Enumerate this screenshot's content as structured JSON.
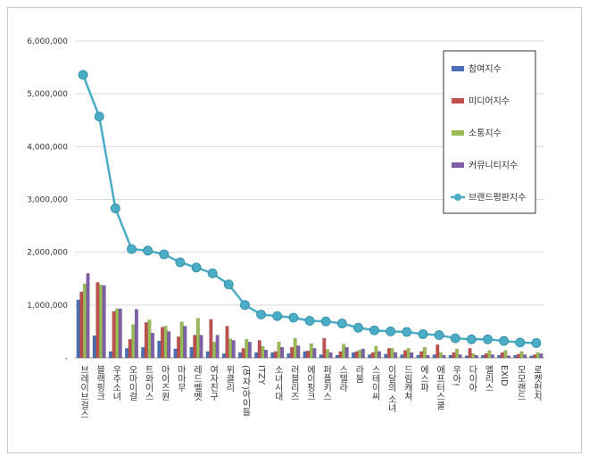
{
  "chart_data": {
    "type": "bar-line",
    "categories": [
      "브레이브걸스",
      "블랙핑크",
      "우주소녀",
      "오마이걸",
      "트와이스",
      "아이즈원",
      "마마무",
      "레드벨벳",
      "여자친구",
      "위클리",
      "(여자)아이들",
      "ITZY",
      "소녀시대",
      "러블리즈",
      "에이핑크",
      "퍼플키스",
      "스텔라",
      "라붐",
      "스테이씨",
      "이달의 소녀",
      "드림캐쳐",
      "에스파",
      "애프터스쿨",
      "우아!",
      "다이아",
      "엘리스",
      "EXID",
      "모모랜드",
      "로켓펀치"
    ],
    "series": [
      {
        "name": "참여지수",
        "type": "bar",
        "color": "#4a6fb5",
        "values": [
          1100000,
          420000,
          120000,
          180000,
          200000,
          320000,
          170000,
          200000,
          120000,
          80000,
          100000,
          100000,
          100000,
          80000,
          120000,
          60000,
          50000,
          100000,
          60000,
          70000,
          60000,
          50000,
          60000,
          50000,
          40000,
          50000,
          50000,
          50000,
          40000
        ]
      },
      {
        "name": "미디어지수",
        "type": "bar",
        "color": "#c0504d",
        "values": [
          1250000,
          1430000,
          880000,
          350000,
          670000,
          580000,
          400000,
          430000,
          730000,
          600000,
          180000,
          330000,
          120000,
          200000,
          130000,
          370000,
          120000,
          120000,
          100000,
          180000,
          140000,
          120000,
          250000,
          100000,
          180000,
          80000,
          100000,
          70000,
          60000
        ]
      },
      {
        "name": "소통지수",
        "type": "bar",
        "color": "#9bbb59",
        "values": [
          1400000,
          1380000,
          930000,
          630000,
          720000,
          600000,
          680000,
          750000,
          300000,
          360000,
          350000,
          220000,
          300000,
          370000,
          270000,
          160000,
          260000,
          150000,
          220000,
          180000,
          180000,
          200000,
          100000,
          170000,
          80000,
          140000,
          140000,
          120000,
          100000
        ]
      },
      {
        "name": "커뮤니티지수",
        "type": "bar",
        "color": "#7e5fa8",
        "values": [
          1600000,
          1370000,
          930000,
          920000,
          470000,
          500000,
          600000,
          430000,
          430000,
          330000,
          300000,
          150000,
          200000,
          230000,
          180000,
          100000,
          200000,
          170000,
          120000,
          100000,
          100000,
          50000,
          50000,
          60000,
          50000,
          60000,
          40000,
          60000,
          80000
        ]
      },
      {
        "name": "브랜드평판지수",
        "type": "line",
        "color": "#4bacc6",
        "values": [
          5360000,
          4570000,
          2830000,
          2060000,
          2030000,
          1960000,
          1810000,
          1710000,
          1600000,
          1390000,
          1000000,
          820000,
          790000,
          760000,
          700000,
          690000,
          650000,
          570000,
          520000,
          500000,
          490000,
          450000,
          430000,
          370000,
          350000,
          350000,
          320000,
          290000,
          280000
        ]
      }
    ],
    "ylim": [
      0,
      6000000
    ],
    "yticks": [
      {
        "value": 0,
        "label": "-"
      },
      {
        "value": 1000000,
        "label": "1,000,000"
      },
      {
        "value": 2000000,
        "label": "2,000,000"
      },
      {
        "value": 3000000,
        "label": "3,000,000"
      },
      {
        "value": 4000000,
        "label": "4,000,000"
      },
      {
        "value": 5000000,
        "label": "5,000,000"
      },
      {
        "value": 6000000,
        "label": "6,000,000"
      }
    ],
    "grid": true,
    "legend": "right"
  }
}
